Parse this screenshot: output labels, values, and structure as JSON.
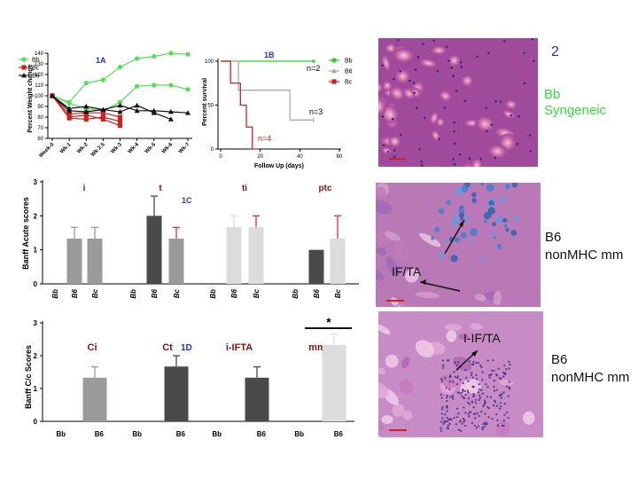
{
  "chart_data": [
    {
      "id": "1A",
      "type": "line",
      "panel_label": "1A",
      "ylabel": "Percent Weight change",
      "xlabel": "",
      "categories": [
        "Week-0",
        "Wk-1",
        "Wk-2",
        "Wk-2.5",
        "Wk-3",
        "Wk-4",
        "Wk-5",
        "Wk-6",
        "Wk-7"
      ],
      "yticks": [
        "60",
        "70",
        "80",
        "90",
        "100",
        "110",
        "120",
        "130",
        "140"
      ],
      "ylim": [
        60,
        140
      ],
      "legend": [
        "Bb",
        "Bc",
        "B6"
      ],
      "series": [
        {
          "name": "Bb",
          "color": "#54e054",
          "marker": "circle",
          "lines": [
            [
              100,
              94,
              112,
              115,
              127,
              135,
              137,
              140,
              139
            ],
            [
              100,
              93,
              88,
              86,
              94,
              109,
              110,
              110,
              106
            ]
          ]
        },
        {
          "name": "Bc",
          "color": "#cc2222",
          "marker": "square",
          "lines": [
            [
              100,
              83,
              84,
              84,
              80
            ],
            [
              100,
              79,
              78,
              80,
              76
            ],
            [
              100,
              80,
              82,
              78,
              72
            ]
          ]
        },
        {
          "name": "B6",
          "color": "#111111",
          "marker": "triangle",
          "lines": [
            [
              100,
              88,
              90,
              87,
              91,
              86,
              86,
              85,
              84
            ],
            [
              100,
              86,
              85,
              87,
              85,
              91,
              84,
              78,
              null
            ]
          ]
        }
      ]
    },
    {
      "id": "1B",
      "type": "line",
      "panel_label": "1B",
      "ylabel": "Percent survival",
      "xlabel": "Follow Up (days)",
      "xticks": [
        "0",
        "20",
        "40",
        "60"
      ],
      "yticks": [
        "0",
        "50",
        "100"
      ],
      "xlim": [
        0,
        60
      ],
      "ylim": [
        0,
        100
      ],
      "legend": [
        "Bb",
        "B6",
        "Bc"
      ],
      "annotations": [
        "n=2",
        "n=3",
        "n=4"
      ],
      "series": [
        {
          "name": "Bb",
          "color": "#33cc33",
          "x": [
            0,
            47
          ],
          "y": [
            100,
            100
          ]
        },
        {
          "name": "B6",
          "color": "#aaaaaa",
          "x": [
            0,
            9,
            9,
            25,
            25,
            35,
            35,
            47
          ],
          "y": [
            100,
            100,
            67,
            67,
            67,
            67,
            33,
            33
          ]
        },
        {
          "name": "Bc",
          "color": "#cc2222",
          "x": [
            0,
            5,
            5,
            10,
            10,
            13,
            13,
            16,
            16,
            19
          ],
          "y": [
            100,
            100,
            75,
            75,
            50,
            50,
            25,
            25,
            0,
            0
          ]
        }
      ]
    },
    {
      "id": "1C",
      "type": "bar",
      "panel_label": "1C",
      "ylabel": "Banff Acute scores",
      "yticks": [
        "0",
        "1",
        "2",
        "3"
      ],
      "ylim": [
        0,
        3
      ],
      "groups": [
        {
          "name": "i",
          "bars": [
            {
              "label": "Bb",
              "value": 0
            },
            {
              "label": "B6",
              "value": 1.33,
              "err": 0.33
            },
            {
              "label": "Bc",
              "value": 1.33,
              "err": 0.33
            }
          ]
        },
        {
          "name": "t",
          "bars": [
            {
              "label": "Bb",
              "value": 0
            },
            {
              "label": "B6",
              "value": 2.0,
              "err": 0.58
            },
            {
              "label": "Bc",
              "value": 1.33,
              "err": 0.33
            }
          ]
        },
        {
          "name": "ti",
          "bars": [
            {
              "label": "Bb",
              "value": 0
            },
            {
              "label": "B6",
              "value": 1.67,
              "err": 0.33
            },
            {
              "label": "Bc",
              "value": 1.67,
              "err": 0.33
            }
          ]
        },
        {
          "name": "ptc",
          "bars": [
            {
              "label": "Bb",
              "value": 0
            },
            {
              "label": "B6",
              "value": 1.0
            },
            {
              "label": "Bc",
              "value": 1.33,
              "err": 0.67
            }
          ]
        }
      ]
    },
    {
      "id": "1D",
      "type": "bar",
      "panel_label": "1D",
      "ylabel": "Banff C/c Scores",
      "yticks": [
        "0",
        "1",
        "2",
        "3"
      ],
      "ylim": [
        0,
        3
      ],
      "annotations": [
        "*"
      ],
      "groups": [
        {
          "name": "Ci",
          "bars": [
            {
              "label": "Bb",
              "value": 0
            },
            {
              "label": "B6",
              "value": 1.33,
              "err": 0.33
            }
          ]
        },
        {
          "name": "Ct",
          "bars": [
            {
              "label": "Bb",
              "value": 0
            },
            {
              "label": "B6",
              "value": 1.67,
              "err": 0.33
            }
          ]
        },
        {
          "name": "i-IFTA",
          "bars": [
            {
              "label": "Bb",
              "value": 0
            },
            {
              "label": "B6",
              "value": 1.33,
              "err": 0.33
            }
          ]
        },
        {
          "name": "mm",
          "bars": [
            {
              "label": "Bb",
              "value": 0
            },
            {
              "label": "B6",
              "value": 2.33,
              "err": 0.33
            }
          ]
        }
      ]
    }
  ],
  "figure2": {
    "label": "2",
    "panels": [
      {
        "caption": "Bb\nSyngeneic",
        "caption_color": "#33dd33"
      },
      {
        "caption": "B6\nnonMHC mm",
        "overlay": "IF/TA"
      },
      {
        "caption": "B6\nnonMHC mm",
        "overlay": "I-IF/TA"
      }
    ]
  },
  "colors": {
    "blue_label": "#2233cc",
    "dark_red": "#8a1010",
    "bar_mid": "#9a9a9a",
    "bar_dark": "#4a4a4a",
    "bar_light": "#dcdcdc"
  }
}
